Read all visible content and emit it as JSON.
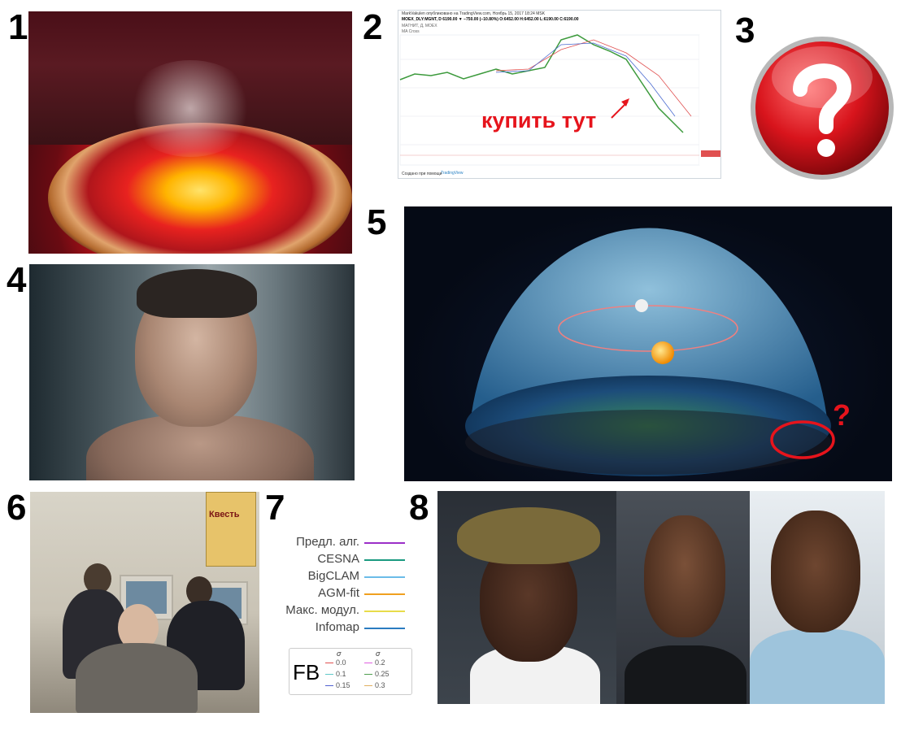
{
  "numbers": [
    "1",
    "2",
    "3",
    "4",
    "5",
    "6",
    "7",
    "8"
  ],
  "chart": {
    "header_line1": "MarkVakulen опубликовано на TradingView.com, Ноябрь 15, 2017 18:24 MSK",
    "header_line2": "MOEX_DLY:MGNT, D 6190.00 ▼ −750.00 (−10.80%) O:6452.00 H:6452.00 L:6190.00 C:6190.00",
    "header_line3": "МАГНИТ, Д, MOEX",
    "header_line4": "MA Cross",
    "footer_text": "Создано при помощи",
    "footer_brand": "TradingView",
    "annotation": "купить тут",
    "annotation_color": "#e6141c"
  },
  "flat_earth": {
    "question_mark": "?"
  },
  "poster": {
    "title": "Квесть"
  },
  "legend": {
    "items": [
      {
        "label": "Предл. алг.",
        "color": "#9b2fc8"
      },
      {
        "label": "CESNA",
        "color": "#1a9a80"
      },
      {
        "label": "BigCLAM",
        "color": "#6bbce8"
      },
      {
        "label": "AGM-fit",
        "color": "#f0a020"
      },
      {
        "label": "Макс. модул.",
        "color": "#e8dc4a"
      },
      {
        "label": "Infomap",
        "color": "#2a7cc0"
      }
    ],
    "fb": {
      "label": "FB",
      "sigma": "σ",
      "col1": [
        {
          "value": "0.0",
          "color": "#e05050"
        },
        {
          "value": "0.1",
          "color": "#60c8c8"
        },
        {
          "value": "0.15",
          "color": "#5060d0"
        }
      ],
      "col2": [
        {
          "value": "0.2",
          "color": "#e060e0"
        },
        {
          "value": "0.25",
          "color": "#50a050"
        },
        {
          "value": "0.3",
          "color": "#e0b060"
        }
      ]
    }
  }
}
